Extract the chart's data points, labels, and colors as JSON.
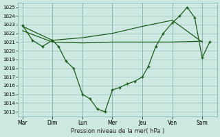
{
  "xlabel": "Pression niveau de la mer( hPa )",
  "background_color": "#cce8e0",
  "grid_color": "#99bbbb",
  "line_color": "#1a5c1a",
  "ylim": [
    1012.5,
    1025.5
  ],
  "yticks": [
    1013,
    1014,
    1015,
    1016,
    1017,
    1018,
    1019,
    1020,
    1021,
    1022,
    1023,
    1024,
    1025
  ],
  "days": [
    "Mar",
    "Dim",
    "Lun",
    "Mer",
    "Jeu",
    "Ven",
    "Sam"
  ],
  "day_positions": [
    0,
    1,
    2,
    3,
    4,
    5,
    6
  ],
  "xlim": [
    -0.15,
    6.5
  ],
  "line1_x": [
    0,
    1,
    2,
    3,
    4,
    5,
    6
  ],
  "line1_y": [
    1022.8,
    1021.2,
    1021.5,
    1022.0,
    1022.8,
    1023.5,
    1021.0
  ],
  "line2_x": [
    0,
    1,
    2,
    3,
    4,
    5,
    6
  ],
  "line2_y": [
    1022.3,
    1021.0,
    1020.9,
    1021.0,
    1021.0,
    1021.0,
    1021.1
  ],
  "line3_x": [
    0,
    0.33,
    0.66,
    1.0,
    1.2,
    1.45,
    1.7,
    2.0,
    2.25,
    2.5,
    2.75,
    3.0,
    3.25,
    3.5,
    3.75,
    4.0,
    4.2,
    4.45,
    4.7,
    5.0,
    5.25,
    5.5,
    5.75,
    6.0,
    6.25
  ],
  "line3_y": [
    1022.9,
    1021.2,
    1020.5,
    1021.2,
    1020.5,
    1018.8,
    1018.0,
    1015.0,
    1014.5,
    1013.3,
    1013.0,
    1015.5,
    1015.8,
    1016.2,
    1016.5,
    1017.0,
    1018.2,
    1020.5,
    1022.0,
    1023.2,
    1024.0,
    1025.0,
    1023.8,
    1019.2,
    1021.0
  ]
}
